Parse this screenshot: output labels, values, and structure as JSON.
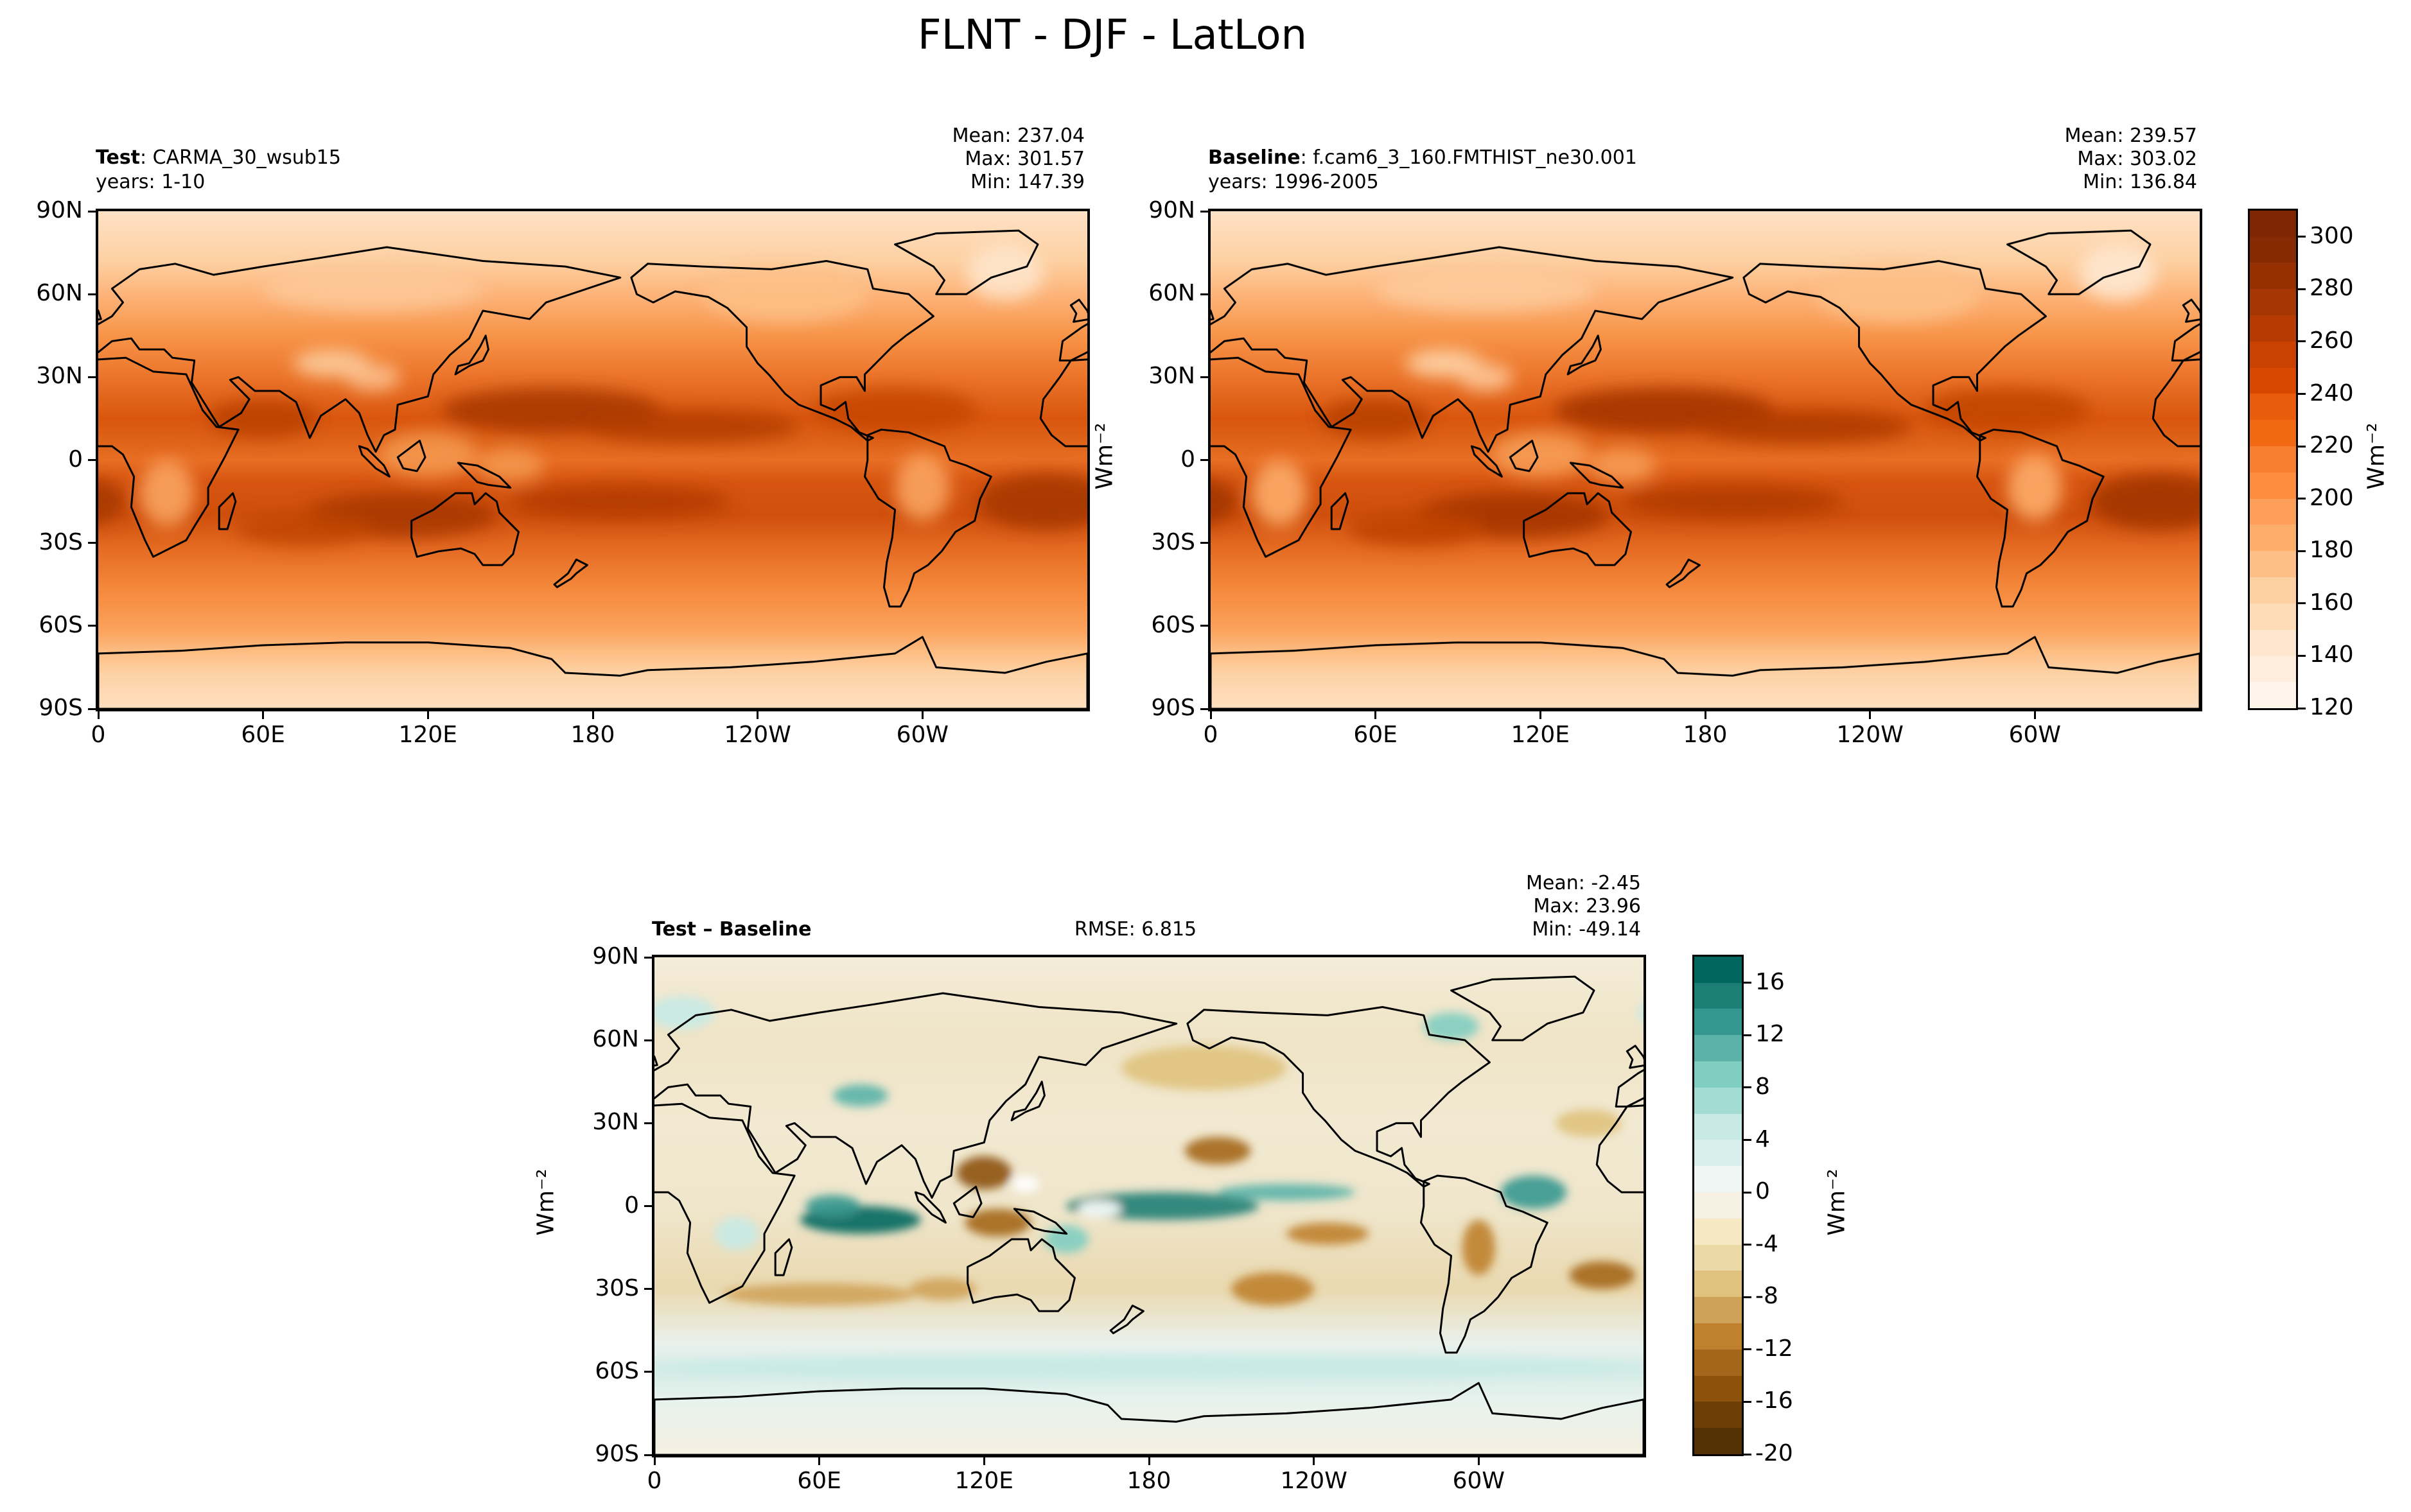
{
  "figure_title": "FLNT - DJF - LatLon",
  "chart_data": [
    {
      "type": "heatmap",
      "panel": "test",
      "title_bold": "Test",
      "title_rest": ": CARMA_30_wsub15",
      "years": "years: 1-10",
      "stats": {
        "mean": "Mean: 237.04",
        "max": "Max: 301.57",
        "min": "Min: 147.39"
      },
      "x_ticks": [
        "0",
        "60E",
        "120E",
        "180",
        "120W",
        "60W"
      ],
      "x_tick_lons": [
        0,
        60,
        120,
        180,
        240,
        300
      ],
      "y_ticks": [
        "90N",
        "60N",
        "30N",
        "0",
        "30S",
        "60S",
        "90S"
      ],
      "y_tick_lats": [
        90,
        60,
        30,
        0,
        -30,
        -60,
        -90
      ],
      "xlim": [
        0,
        360
      ],
      "ylim": [
        -90,
        90
      ],
      "colormap": "Oranges"
    },
    {
      "type": "heatmap",
      "panel": "baseline",
      "title_bold": "Baseline",
      "title_rest": ": f.cam6_3_160.FMTHIST_ne30.001",
      "years": "years: 1996-2005",
      "stats": {
        "mean": "Mean: 239.57",
        "max": "Max: 303.02",
        "min": "Min: 136.84"
      },
      "ylabel": "Wm⁻²",
      "x_ticks": [
        "0",
        "60E",
        "120E",
        "180",
        "120W",
        "60W"
      ],
      "x_tick_lons": [
        0,
        60,
        120,
        180,
        240,
        300
      ],
      "y_ticks": [
        "90N",
        "60N",
        "30N",
        "0",
        "30S",
        "60S",
        "90S"
      ],
      "y_tick_lats": [
        90,
        60,
        30,
        0,
        -30,
        -60,
        -90
      ],
      "xlim": [
        0,
        360
      ],
      "ylim": [
        -90,
        90
      ],
      "colormap": "Oranges"
    },
    {
      "type": "heatmap",
      "panel": "difference",
      "title_bold": "Test – Baseline",
      "rmse": "RMSE: 6.815",
      "stats": {
        "mean": "Mean: -2.45",
        "max": "Max: 23.96",
        "min": "Min: -49.14"
      },
      "ylabel": "Wm⁻²",
      "x_ticks": [
        "0",
        "60E",
        "120E",
        "180",
        "120W",
        "60W"
      ],
      "x_tick_lons": [
        0,
        60,
        120,
        180,
        240,
        300
      ],
      "y_ticks": [
        "90N",
        "60N",
        "30N",
        "0",
        "30S",
        "60S",
        "90S"
      ],
      "y_tick_lats": [
        90,
        60,
        30,
        0,
        -30,
        -60,
        -90
      ],
      "xlim": [
        0,
        360
      ],
      "ylim": [
        -90,
        90
      ],
      "colormap": "BrBG"
    }
  ],
  "colorbars": [
    {
      "label": "Wm⁻²",
      "range": [
        120,
        310
      ],
      "ticks": [
        "120",
        "140",
        "160",
        "180",
        "200",
        "220",
        "240",
        "260",
        "280",
        "300"
      ],
      "tick_values": [
        120,
        140,
        160,
        180,
        200,
        220,
        240,
        260,
        280,
        300
      ],
      "colors": [
        "#fff5eb",
        "#feeddc",
        "#fee6ce",
        "#fddbb6",
        "#fdd0a2",
        "#fdbf86",
        "#fdae6b",
        "#fd9f58",
        "#fd8d3c",
        "#f77e2e",
        "#f16913",
        "#e85c0c",
        "#d94801",
        "#c94202",
        "#b63b02",
        "#a63603",
        "#963003",
        "#862a04",
        "#7f2704"
      ]
    },
    {
      "label": "Wm⁻²",
      "range": [
        -20,
        18
      ],
      "ticks": [
        "-20",
        "-16",
        "-12",
        "-8",
        "-4",
        "0",
        "4",
        "8",
        "12",
        "16"
      ],
      "tick_values": [
        -20,
        -16,
        -12,
        -8,
        -4,
        0,
        4,
        8,
        12,
        16
      ],
      "colors": [
        "#543005",
        "#6b3d07",
        "#8c510a",
        "#a4661a",
        "#bf812d",
        "#cfa25a",
        "#dfc27d",
        "#ead8a6",
        "#f6e8c3",
        "#f5f0e1",
        "#eef5f3",
        "#d7eeea",
        "#c7eae5",
        "#a3dcd3",
        "#80cdc1",
        "#5ab2a8",
        "#35978f",
        "#1c7e75",
        "#01665e"
      ]
    }
  ]
}
